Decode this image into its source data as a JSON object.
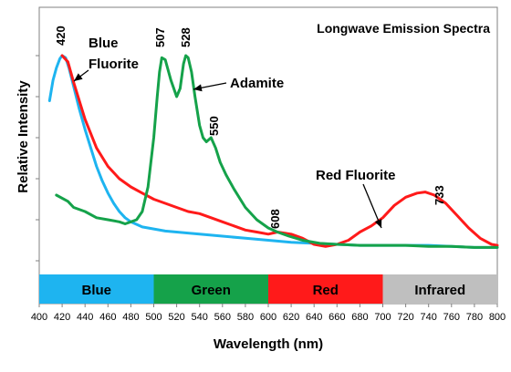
{
  "chart_data": {
    "type": "line",
    "title": "Longwave Emission Spectra",
    "xlabel": "Wavelength (nm)",
    "ylabel": "Relative Intensity",
    "xlim": [
      400,
      800
    ],
    "ylim": [
      0,
      1.0
    ],
    "x_ticks": [
      400,
      420,
      440,
      460,
      480,
      500,
      520,
      540,
      560,
      580,
      600,
      620,
      640,
      660,
      680,
      700,
      720,
      740,
      760,
      780,
      800
    ],
    "grid": false,
    "bands": [
      {
        "label": "Blue",
        "start": 400,
        "end": 500,
        "color": "#1eb4f0"
      },
      {
        "label": "Green",
        "start": 500,
        "end": 600,
        "color": "#15a24a"
      },
      {
        "label": "Red",
        "start": 600,
        "end": 700,
        "color": "#ff1a1a"
      },
      {
        "label": "Infrared",
        "start": 700,
        "end": 800,
        "color": "#bfbfbf"
      }
    ],
    "series": [
      {
        "name": "Blue Fluorite",
        "color": "#1eb4f0",
        "points": [
          [
            409,
            0.78
          ],
          [
            412,
            0.88
          ],
          [
            415,
            0.94
          ],
          [
            418,
            0.985
          ],
          [
            420,
            1.0
          ],
          [
            423,
            0.99
          ],
          [
            426,
            0.94
          ],
          [
            430,
            0.85
          ],
          [
            435,
            0.74
          ],
          [
            440,
            0.64
          ],
          [
            445,
            0.55
          ],
          [
            450,
            0.46
          ],
          [
            455,
            0.39
          ],
          [
            460,
            0.33
          ],
          [
            465,
            0.28
          ],
          [
            470,
            0.24
          ],
          [
            475,
            0.21
          ],
          [
            480,
            0.19
          ],
          [
            490,
            0.165
          ],
          [
            500,
            0.155
          ],
          [
            510,
            0.145
          ],
          [
            520,
            0.14
          ],
          [
            540,
            0.13
          ],
          [
            560,
            0.12
          ],
          [
            580,
            0.11
          ],
          [
            600,
            0.1
          ],
          [
            620,
            0.09
          ],
          [
            640,
            0.085
          ],
          [
            660,
            0.08
          ],
          [
            680,
            0.075
          ],
          [
            700,
            0.075
          ],
          [
            720,
            0.075
          ],
          [
            740,
            0.075
          ],
          [
            760,
            0.07
          ],
          [
            780,
            0.065
          ],
          [
            800,
            0.065
          ]
        ]
      },
      {
        "name": "Red Fluorite",
        "color": "#ff1a1a",
        "points": [
          [
            420,
            1.0
          ],
          [
            425,
            0.97
          ],
          [
            430,
            0.87
          ],
          [
            440,
            0.69
          ],
          [
            450,
            0.55
          ],
          [
            460,
            0.46
          ],
          [
            470,
            0.4
          ],
          [
            480,
            0.36
          ],
          [
            490,
            0.33
          ],
          [
            500,
            0.3
          ],
          [
            510,
            0.28
          ],
          [
            520,
            0.26
          ],
          [
            530,
            0.24
          ],
          [
            540,
            0.23
          ],
          [
            550,
            0.21
          ],
          [
            560,
            0.19
          ],
          [
            570,
            0.17
          ],
          [
            580,
            0.15
          ],
          [
            590,
            0.14
          ],
          [
            600,
            0.13
          ],
          [
            608,
            0.14
          ],
          [
            620,
            0.13
          ],
          [
            630,
            0.11
          ],
          [
            640,
            0.08
          ],
          [
            650,
            0.07
          ],
          [
            660,
            0.08
          ],
          [
            670,
            0.1
          ],
          [
            680,
            0.14
          ],
          [
            690,
            0.17
          ],
          [
            700,
            0.21
          ],
          [
            710,
            0.27
          ],
          [
            720,
            0.31
          ],
          [
            730,
            0.33
          ],
          [
            737,
            0.335
          ],
          [
            745,
            0.32
          ],
          [
            755,
            0.28
          ],
          [
            765,
            0.22
          ],
          [
            775,
            0.16
          ],
          [
            785,
            0.11
          ],
          [
            795,
            0.08
          ],
          [
            800,
            0.075
          ]
        ]
      },
      {
        "name": "Adamite",
        "color": "#15a24a",
        "points": [
          [
            415,
            0.32
          ],
          [
            425,
            0.29
          ],
          [
            430,
            0.26
          ],
          [
            440,
            0.24
          ],
          [
            450,
            0.21
          ],
          [
            460,
            0.2
          ],
          [
            470,
            0.19
          ],
          [
            475,
            0.18
          ],
          [
            480,
            0.19
          ],
          [
            485,
            0.2
          ],
          [
            490,
            0.24
          ],
          [
            495,
            0.36
          ],
          [
            500,
            0.6
          ],
          [
            503,
            0.8
          ],
          [
            505,
            0.92
          ],
          [
            507,
            0.99
          ],
          [
            510,
            0.98
          ],
          [
            515,
            0.88
          ],
          [
            520,
            0.8
          ],
          [
            523,
            0.84
          ],
          [
            526,
            0.96
          ],
          [
            528,
            1.0
          ],
          [
            530,
            0.99
          ],
          [
            533,
            0.92
          ],
          [
            536,
            0.8
          ],
          [
            540,
            0.66
          ],
          [
            543,
            0.6
          ],
          [
            546,
            0.58
          ],
          [
            550,
            0.6
          ],
          [
            554,
            0.55
          ],
          [
            558,
            0.48
          ],
          [
            563,
            0.42
          ],
          [
            570,
            0.35
          ],
          [
            580,
            0.26
          ],
          [
            590,
            0.2
          ],
          [
            600,
            0.16
          ],
          [
            608,
            0.14
          ],
          [
            618,
            0.12
          ],
          [
            630,
            0.1
          ],
          [
            645,
            0.085
          ],
          [
            660,
            0.08
          ],
          [
            680,
            0.075
          ],
          [
            700,
            0.075
          ],
          [
            720,
            0.075
          ],
          [
            740,
            0.07
          ],
          [
            760,
            0.07
          ],
          [
            780,
            0.065
          ],
          [
            800,
            0.065
          ]
        ]
      }
    ],
    "annotations": [
      {
        "text": "420",
        "x": 420
      },
      {
        "text": "507",
        "x": 507
      },
      {
        "text": "528",
        "x": 528
      },
      {
        "text": "550",
        "x": 550
      },
      {
        "text": "608",
        "x": 608
      },
      {
        "text": "733",
        "x": 733
      }
    ],
    "series_labels": [
      {
        "lines": [
          "Blue",
          "Fluorite"
        ],
        "series": "Blue Fluorite"
      },
      {
        "lines": [
          "Adamite"
        ],
        "series": "Adamite"
      },
      {
        "lines": [
          "Red Fluorite"
        ],
        "series": "Red Fluorite"
      }
    ]
  }
}
